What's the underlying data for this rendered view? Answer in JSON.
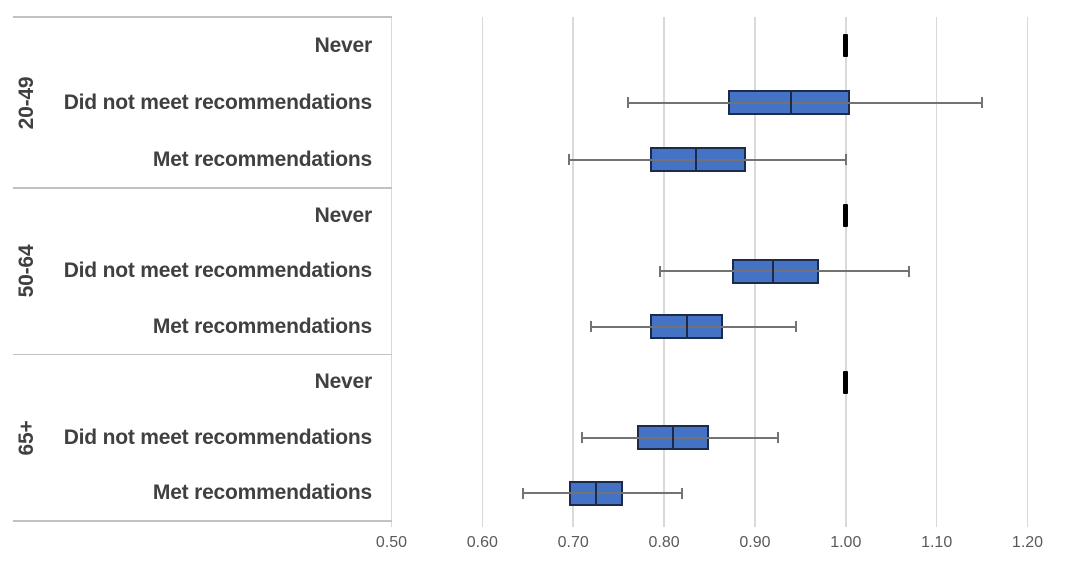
{
  "chart_data": {
    "type": "boxplot",
    "orientation": "horizontal",
    "x_axis": {
      "min": 0.5,
      "max": 1.2,
      "tick_step": 0.1,
      "tick_labels": [
        "0.50",
        "0.60",
        "0.70",
        "0.80",
        "0.90",
        "1.00",
        "1.10",
        "1.20"
      ],
      "grid": true
    },
    "groups": [
      {
        "label": "20-49",
        "rows": [
          {
            "category": "Never",
            "type": "reference",
            "value": 1.0
          },
          {
            "category": "Did not meet recommendations",
            "type": "box",
            "whisker_low": 0.76,
            "q1": 0.87,
            "median": 0.94,
            "q3": 1.005,
            "whisker_high": 1.15
          },
          {
            "category": "Met recommendations",
            "type": "box",
            "whisker_low": 0.695,
            "q1": 0.785,
            "median": 0.835,
            "q3": 0.89,
            "whisker_high": 1.0
          }
        ]
      },
      {
        "label": "50-64",
        "rows": [
          {
            "category": "Never",
            "type": "reference",
            "value": 1.0
          },
          {
            "category": "Did not meet recommendations",
            "type": "box",
            "whisker_low": 0.795,
            "q1": 0.875,
            "median": 0.92,
            "q3": 0.97,
            "whisker_high": 1.07
          },
          {
            "category": "Met recommendations",
            "type": "box",
            "whisker_low": 0.72,
            "q1": 0.785,
            "median": 0.825,
            "q3": 0.865,
            "whisker_high": 0.945
          }
        ]
      },
      {
        "label": "65+",
        "rows": [
          {
            "category": "Never",
            "type": "reference",
            "value": 1.0
          },
          {
            "category": "Did not meet recommendations",
            "type": "box",
            "whisker_low": 0.71,
            "q1": 0.77,
            "median": 0.81,
            "q3": 0.85,
            "whisker_high": 0.925
          },
          {
            "category": "Met recommendations",
            "type": "box",
            "whisker_low": 0.645,
            "q1": 0.695,
            "median": 0.725,
            "q3": 0.755,
            "whisker_high": 0.82
          }
        ]
      }
    ]
  },
  "style": {
    "box_fill": "#4472C4",
    "box_border": "#1C2B4A",
    "median_line": "#1C2B4A",
    "whisker": "#737373",
    "reference_tick": "#000000",
    "gridline": "#D9D9D9",
    "divider": "#C2C2C2",
    "category_text": "#404040",
    "axis_text": "#595959",
    "background": "#FFFFFF"
  }
}
